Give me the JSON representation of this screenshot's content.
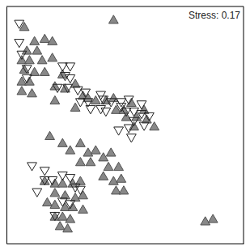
{
  "chart_data": {
    "type": "scatter",
    "annotations": [
      "Stress: 0.17"
    ],
    "xlim": [
      -0.05,
      0.88
    ],
    "ylim": [
      0.02,
      1.02
    ],
    "tick_labels": false,
    "series": [
      {
        "color": "#888888",
        "marker": "triangle-up",
        "x": [
          0.02,
          0.06,
          0.1,
          0.13,
          0.03,
          0.07,
          0.01,
          0.04,
          0.09,
          0.02,
          0.06,
          0.1,
          0.01,
          0.04,
          0.01,
          0.05,
          0.13,
          0.17,
          0.14,
          0.18,
          0.14,
          0.22,
          0.25,
          0.27,
          0.22,
          0.3,
          0.34,
          0.37,
          0.38,
          0.41,
          0.44,
          0.42,
          0.46,
          0.49,
          0.5,
          0.45,
          0.53,
          0.37,
          0.12,
          0.17,
          0.2,
          0.24,
          0.27,
          0.3,
          0.24,
          0.28,
          0.33,
          0.36,
          0.35,
          0.39,
          0.33,
          0.37,
          0.4,
          0.38,
          0.41,
          0.1,
          0.14,
          0.17,
          0.21,
          0.24,
          0.14,
          0.18,
          0.22,
          0.25,
          0.11,
          0.14,
          0.18,
          0.21,
          0.25,
          0.14,
          0.17,
          0.2,
          0.16,
          0.19,
          0.73,
          0.76
        ],
        "values": [
          0.93,
          0.87,
          0.88,
          0.87,
          0.83,
          0.83,
          0.79,
          0.79,
          0.79,
          0.75,
          0.74,
          0.74,
          0.7,
          0.7,
          0.66,
          0.65,
          0.8,
          0.73,
          0.68,
          0.67,
          0.62,
          0.69,
          0.64,
          0.63,
          0.59,
          0.62,
          0.62,
          0.63,
          0.58,
          0.58,
          0.61,
          0.55,
          0.55,
          0.58,
          0.54,
          0.51,
          0.51,
          0.96,
          0.47,
          0.44,
          0.41,
          0.44,
          0.4,
          0.41,
          0.36,
          0.36,
          0.38,
          0.4,
          0.34,
          0.34,
          0.3,
          0.28,
          0.29,
          0.24,
          0.24,
          0.28,
          0.27,
          0.27,
          0.27,
          0.28,
          0.23,
          0.22,
          0.21,
          0.22,
          0.19,
          0.18,
          0.17,
          0.17,
          0.16,
          0.13,
          0.13,
          0.12,
          0.09,
          0.08,
          0.11,
          0.12
        ]
      },
      {
        "color": "#222222",
        "marker": "triangle-down-open",
        "x": [
          0,
          0,
          0.01,
          0.03,
          0.03,
          0.17,
          0.2,
          0.18,
          0.2,
          0.15,
          0.19,
          0.23,
          0.26,
          0.24,
          0.27,
          0.28,
          0.32,
          0.33,
          0.32,
          0.34,
          0.36,
          0.4,
          0.4,
          0.43,
          0.42,
          0.45,
          0.48,
          0.48,
          0.51,
          0.45,
          0.49,
          0.43,
          0.44,
          0.39,
          0.05,
          0.1,
          0.1,
          0.13,
          0.07,
          0.17,
          0.2,
          0.22,
          0.24,
          0.17,
          0.2,
          0.14
        ],
        "values": [
          0.95,
          0.87,
          0.82,
          0.76,
          0.72,
          0.77,
          0.77,
          0.73,
          0.72,
          0.68,
          0.68,
          0.67,
          0.66,
          0.62,
          0.62,
          0.59,
          0.65,
          0.63,
          0.59,
          0.58,
          0.62,
          0.62,
          0.6,
          0.63,
          0.58,
          0.58,
          0.61,
          0.57,
          0.56,
          0.54,
          0.52,
          0.51,
          0.47,
          0.5,
          0.35,
          0.33,
          0.29,
          0.29,
          0.24,
          0.31,
          0.3,
          0.26,
          0.25,
          0.2,
          0.19,
          0.14
        ]
      }
    ]
  }
}
